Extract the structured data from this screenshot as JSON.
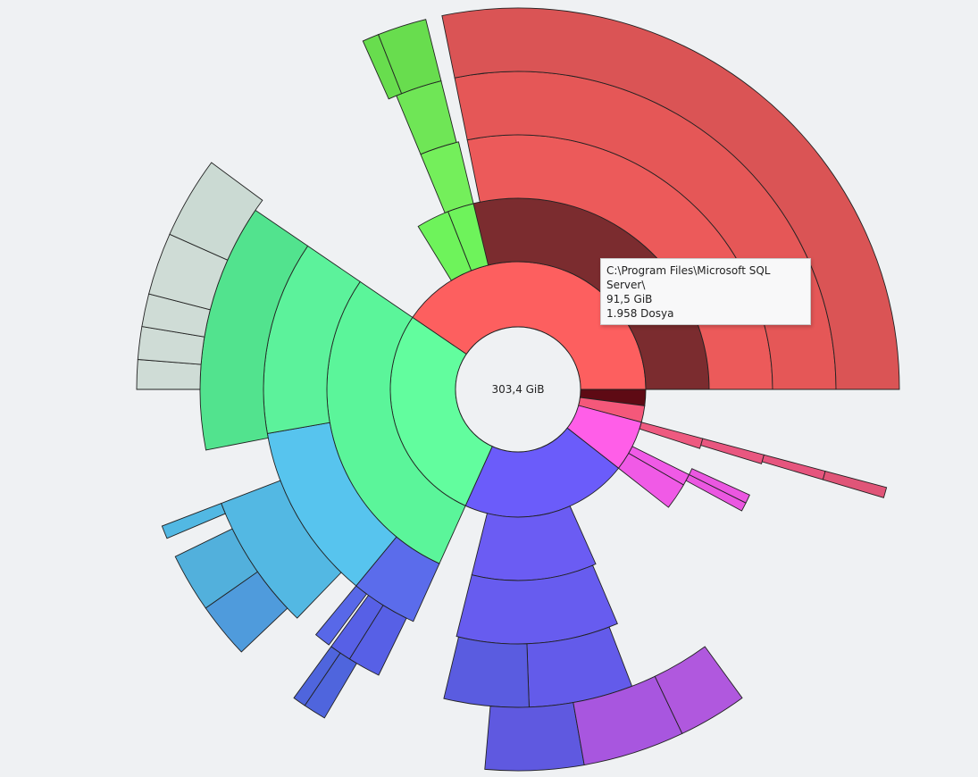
{
  "center": {
    "total_size": "303,4 GiB"
  },
  "tooltip": {
    "path": "C:\\Program Files\\Microsoft SQL Server\\",
    "size": "91,5 GiB",
    "files": "1.958 Dosya"
  }
}
